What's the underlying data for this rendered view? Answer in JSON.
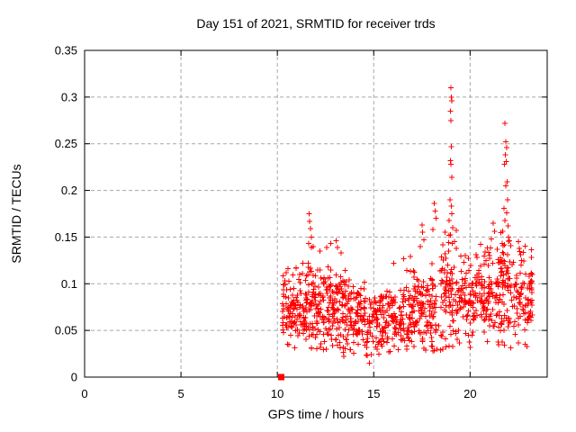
{
  "chart_data": {
    "type": "scatter",
    "title": "Day 151 of 2021, SRMTID for receiver trds",
    "xlabel": "GPS time / hours",
    "ylabel": "SRMTID / TECUs",
    "xlim": [
      0,
      24
    ],
    "ylim": [
      0,
      0.35
    ],
    "x_ticks": [
      {
        "v": 0,
        "label": "0"
      },
      {
        "v": 5,
        "label": "5"
      },
      {
        "v": 10,
        "label": "10"
      },
      {
        "v": 15,
        "label": "15"
      },
      {
        "v": 20,
        "label": "20"
      }
    ],
    "y_ticks": [
      {
        "v": 0,
        "label": "0"
      },
      {
        "v": 0.05,
        "label": "0.05"
      },
      {
        "v": 0.1,
        "label": "0.1"
      },
      {
        "v": 0.15,
        "label": "0.15"
      },
      {
        "v": 0.2,
        "label": "0.2"
      },
      {
        "v": 0.25,
        "label": "0.25"
      },
      {
        "v": 0.3,
        "label": "0.3"
      },
      {
        "v": 0.35,
        "label": "0.35"
      }
    ],
    "grid": true,
    "legend": "none",
    "marker": "+",
    "marker_color": "#ff0000",
    "grid_color": "#a8a8a8",
    "border_color": "#000000",
    "background_color": "#ffffff",
    "zero_marker": {
      "x": 10.2,
      "y": 0,
      "shape": "filled-square",
      "color": "#ff0000"
    },
    "data_x_range": [
      10.2,
      23.25
    ],
    "outlier_points": [
      [
        10.45,
        0.112
      ],
      [
        10.55,
        0.116
      ],
      [
        11.62,
        0.143
      ],
      [
        11.66,
        0.175
      ],
      [
        11.68,
        0.167
      ],
      [
        11.71,
        0.159
      ],
      [
        11.76,
        0.15
      ],
      [
        12.2,
        0.135
      ],
      [
        12.55,
        0.139
      ],
      [
        12.78,
        0.143
      ],
      [
        13.05,
        0.146
      ],
      [
        13.12,
        0.139
      ],
      [
        13.3,
        0.133
      ],
      [
        13.45,
        0.022
      ],
      [
        14.78,
        0.015
      ],
      [
        14.86,
        0.024
      ],
      [
        16.05,
        0.122
      ],
      [
        16.55,
        0.127
      ],
      [
        16.9,
        0.129
      ],
      [
        17.42,
        0.14
      ],
      [
        17.5,
        0.163
      ],
      [
        17.54,
        0.155
      ],
      [
        17.6,
        0.147
      ],
      [
        18.08,
        0.158
      ],
      [
        18.14,
        0.186
      ],
      [
        18.19,
        0.178
      ],
      [
        18.24,
        0.17
      ],
      [
        18.88,
        0.135
      ],
      [
        18.91,
        0.168
      ],
      [
        18.92,
        0.152
      ],
      [
        18.95,
        0.19
      ],
      [
        18.97,
        0.232
      ],
      [
        18.99,
        0.285
      ],
      [
        19.0,
        0.31
      ],
      [
        19.0,
        0.228
      ],
      [
        19.01,
        0.275
      ],
      [
        19.02,
        0.3
      ],
      [
        19.02,
        0.183
      ],
      [
        19.03,
        0.247
      ],
      [
        19.04,
        0.296
      ],
      [
        19.05,
        0.214
      ],
      [
        19.06,
        0.175
      ],
      [
        19.08,
        0.143
      ],
      [
        19.1,
        0.16
      ],
      [
        19.75,
        0.13
      ],
      [
        20.3,
        0.131
      ],
      [
        20.55,
        0.142
      ],
      [
        21.1,
        0.148
      ],
      [
        21.2,
        0.165
      ],
      [
        21.26,
        0.156
      ],
      [
        21.7,
        0.156
      ],
      [
        21.75,
        0.181
      ],
      [
        21.78,
        0.228
      ],
      [
        21.8,
        0.272
      ],
      [
        21.81,
        0.168
      ],
      [
        21.83,
        0.238
      ],
      [
        21.85,
        0.252
      ],
      [
        21.86,
        0.205
      ],
      [
        21.88,
        0.231
      ],
      [
        21.9,
        0.246
      ],
      [
        21.91,
        0.176
      ],
      [
        21.93,
        0.209
      ],
      [
        21.95,
        0.19
      ],
      [
        21.98,
        0.162
      ],
      [
        22.0,
        0.15
      ],
      [
        22.05,
        0.146
      ],
      [
        22.1,
        0.141
      ],
      [
        22.5,
        0.145
      ],
      [
        22.56,
        0.138
      ],
      [
        22.62,
        0.131
      ]
    ],
    "clusters": [
      {
        "x0": 10.25,
        "x1": 10.6,
        "n": 35,
        "mean": 0.072,
        "sd": 0.02,
        "ymin": 0.028,
        "ymax": 0.115
      },
      {
        "x0": 10.6,
        "x1": 11.4,
        "n": 75,
        "mean": 0.074,
        "sd": 0.02,
        "ymin": 0.028,
        "ymax": 0.125
      },
      {
        "x0": 11.4,
        "x1": 12.1,
        "n": 80,
        "mean": 0.08,
        "sd": 0.024,
        "ymin": 0.028,
        "ymax": 0.14
      },
      {
        "x0": 12.1,
        "x1": 13.0,
        "n": 90,
        "mean": 0.078,
        "sd": 0.024,
        "ymin": 0.028,
        "ymax": 0.145
      },
      {
        "x0": 13.0,
        "x1": 13.8,
        "n": 85,
        "mean": 0.072,
        "sd": 0.023,
        "ymin": 0.026,
        "ymax": 0.135
      },
      {
        "x0": 13.8,
        "x1": 14.6,
        "n": 75,
        "mean": 0.065,
        "sd": 0.02,
        "ymin": 0.024,
        "ymax": 0.12
      },
      {
        "x0": 14.6,
        "x1": 15.5,
        "n": 80,
        "mean": 0.058,
        "sd": 0.017,
        "ymin": 0.02,
        "ymax": 0.105
      },
      {
        "x0": 15.5,
        "x1": 16.5,
        "n": 85,
        "mean": 0.063,
        "sd": 0.017,
        "ymin": 0.026,
        "ymax": 0.11
      },
      {
        "x0": 16.5,
        "x1": 17.4,
        "n": 85,
        "mean": 0.067,
        "sd": 0.019,
        "ymin": 0.028,
        "ymax": 0.12
      },
      {
        "x0": 17.4,
        "x1": 18.5,
        "n": 90,
        "mean": 0.072,
        "sd": 0.023,
        "ymin": 0.028,
        "ymax": 0.135
      },
      {
        "x0": 18.5,
        "x1": 19.3,
        "n": 80,
        "mean": 0.088,
        "sd": 0.03,
        "ymin": 0.03,
        "ymax": 0.158
      },
      {
        "x0": 19.3,
        "x1": 20.3,
        "n": 85,
        "mean": 0.08,
        "sd": 0.021,
        "ymin": 0.03,
        "ymax": 0.13
      },
      {
        "x0": 20.3,
        "x1": 21.3,
        "n": 90,
        "mean": 0.088,
        "sd": 0.024,
        "ymin": 0.032,
        "ymax": 0.14
      },
      {
        "x0": 21.3,
        "x1": 22.1,
        "n": 90,
        "mean": 0.098,
        "sd": 0.03,
        "ymin": 0.032,
        "ymax": 0.165
      },
      {
        "x0": 22.1,
        "x1": 23.25,
        "n": 100,
        "mean": 0.085,
        "sd": 0.025,
        "ymin": 0.03,
        "ymax": 0.148
      }
    ]
  }
}
